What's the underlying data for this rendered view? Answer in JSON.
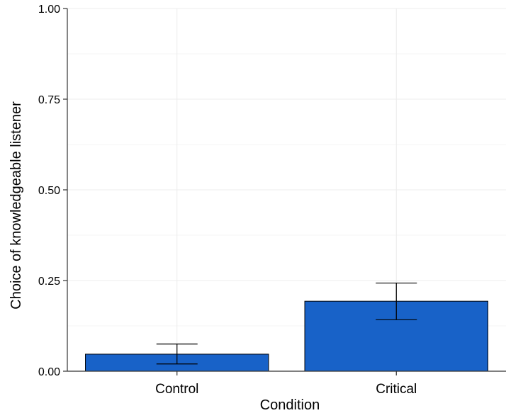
{
  "chart_data": {
    "type": "bar",
    "categories": [
      "Control",
      "Critical"
    ],
    "values": [
      0.047,
      0.193
    ],
    "error_low": [
      0.02,
      0.142
    ],
    "error_high": [
      0.075,
      0.243
    ],
    "xlabel": "Condition",
    "ylabel": "Choice of knowledgeable listener",
    "ylim": [
      0,
      1
    ],
    "yticks": [
      "0.00",
      "0.25",
      "0.50",
      "0.75",
      "1.00"
    ],
    "grid": true,
    "bar_color": "#1862c8",
    "bar_edge_color": "#000000",
    "gridline_color": "#ececec"
  }
}
